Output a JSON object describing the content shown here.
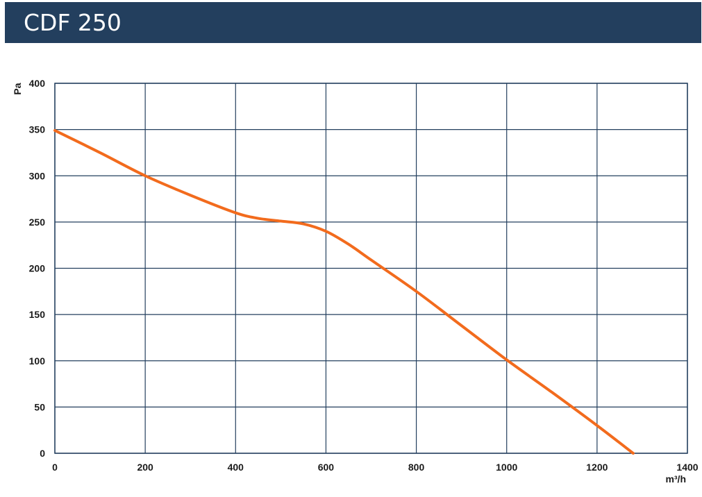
{
  "header": {
    "title": "CDF 250",
    "background": "#233f5e"
  },
  "chart_data": {
    "type": "line",
    "title": "CDF 250",
    "xlabel": "m³/h",
    "ylabel": "Pa",
    "xlim": [
      0,
      1400
    ],
    "ylim": [
      0,
      400
    ],
    "x_ticks": [
      "0",
      "200",
      "400",
      "600",
      "800",
      "1000",
      "1200",
      "1400"
    ],
    "y_ticks": [
      "0",
      "50",
      "100",
      "150",
      "200",
      "250",
      "300",
      "350",
      "400"
    ],
    "grid": true,
    "grid_color": "#233f5e",
    "series": [
      {
        "color": "#f26b1d",
        "x": [
          0,
          100,
          200,
          300,
          400,
          450,
          500,
          550,
          600,
          650,
          700,
          800,
          900,
          1000,
          1100,
          1200,
          1280
        ],
        "y": [
          349,
          325,
          300,
          279,
          260,
          254,
          251,
          248,
          240,
          226,
          209,
          175,
          138,
          101,
          66,
          30,
          0
        ]
      }
    ]
  }
}
